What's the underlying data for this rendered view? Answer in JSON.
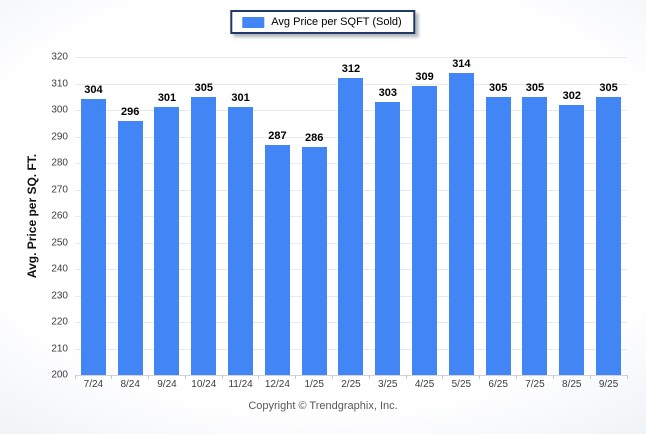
{
  "legend": {
    "label": "Avg Price per SQFT (Sold)"
  },
  "footer": {
    "copyright": "Copyright © Trendgraphix, Inc."
  },
  "chart_data": {
    "type": "bar",
    "title": "",
    "xlabel": "",
    "ylabel": "Avg. Price per SQ. FT.",
    "categories": [
      "7/24",
      "8/24",
      "9/24",
      "10/24",
      "11/24",
      "12/24",
      "1/25",
      "2/25",
      "3/25",
      "4/25",
      "5/25",
      "6/25",
      "7/25",
      "8/25",
      "9/25"
    ],
    "series": [
      {
        "name": "Avg Price per SQFT (Sold)",
        "values": [
          304,
          296,
          301,
          305,
          301,
          287,
          286,
          312,
          303,
          309,
          314,
          305,
          305,
          302,
          305
        ]
      }
    ],
    "ylim": [
      200,
      320
    ],
    "ytick_step": 10,
    "grid": "horizontal",
    "legend_position": "top-center",
    "value_labels": "above-bars",
    "colors": {
      "bar": "#4285F4",
      "legend_border": "#1F3864",
      "gridline": "#e9e9e9",
      "axis_line": "#d4d4d4",
      "tick_mark": "#c6c6c6",
      "tick_label": "#3c3c3c",
      "value_label": "#000000",
      "footer_text": "#595959"
    }
  }
}
